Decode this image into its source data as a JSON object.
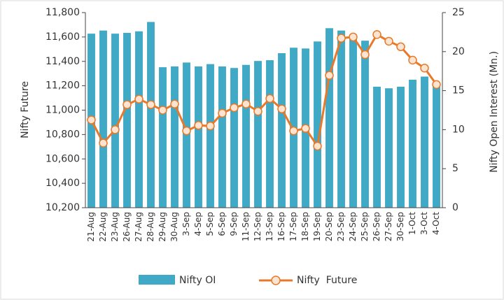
{
  "chart_data": {
    "type": "bar-line",
    "categories": [
      "21-Aug",
      "22-Aug",
      "23-Aug",
      "26-Aug",
      "27-Aug",
      "28-Aug",
      "29-Aug",
      "30-Aug",
      "3-Sep",
      "4-Sep",
      "5-Sep",
      "6-Sep",
      "9-Sep",
      "11-Sep",
      "12-Sep",
      "13-Sep",
      "16-Sep",
      "17-Sep",
      "18-Sep",
      "19-Sep",
      "20-Sep",
      "23-Sep",
      "24-Sep",
      "25-Sep",
      "26-Sep",
      "27-Sep",
      "30-Sep",
      "1-Oct",
      "3-Oct",
      "4-Oct"
    ],
    "series": [
      {
        "name": "Nifty OI",
        "type": "bar",
        "axis": "y2",
        "color": "#3fa9c6",
        "values": [
          22.3,
          22.7,
          22.3,
          22.4,
          22.6,
          23.8,
          18.0,
          18.1,
          18.6,
          18.1,
          18.4,
          18.1,
          17.9,
          18.3,
          18.8,
          18.9,
          19.8,
          20.5,
          20.4,
          21.3,
          23.0,
          22.7,
          22.2,
          21.4,
          15.5,
          15.3,
          15.5,
          16.4,
          16.8,
          16.1
        ]
      },
      {
        "name": "Nifty  Future",
        "type": "line",
        "color": "#e8792a",
        "marker_fill": "#fce4d0",
        "values": [
          10920,
          10730,
          10840,
          11045,
          11090,
          11045,
          11000,
          11050,
          10830,
          10875,
          10870,
          10975,
          11020,
          11050,
          10990,
          11095,
          11010,
          10830,
          10850,
          10705,
          11285,
          11590,
          11600,
          11455,
          11620,
          11565,
          11520,
          11410,
          11345,
          11210
        ]
      }
    ],
    "y_label": "Nifty Future",
    "y2_label": "Nifty Open Interest (Mn.)",
    "ylim": [
      10200,
      11800
    ],
    "yticks": [
      {
        "value": 10200,
        "label": "10,200"
      },
      {
        "value": 10400,
        "label": "10,400"
      },
      {
        "value": 10600,
        "label": "10,600"
      },
      {
        "value": 10800,
        "label": "10,800"
      },
      {
        "value": 11000,
        "label": "11,000"
      },
      {
        "value": 11200,
        "label": "11,200"
      },
      {
        "value": 11400,
        "label": "11,400"
      },
      {
        "value": 11600,
        "label": "11,600"
      },
      {
        "value": 11800,
        "label": "11,800"
      }
    ],
    "y2lim": [
      0,
      25
    ],
    "y2ticks": [
      0,
      5,
      10,
      15,
      20,
      25
    ]
  }
}
